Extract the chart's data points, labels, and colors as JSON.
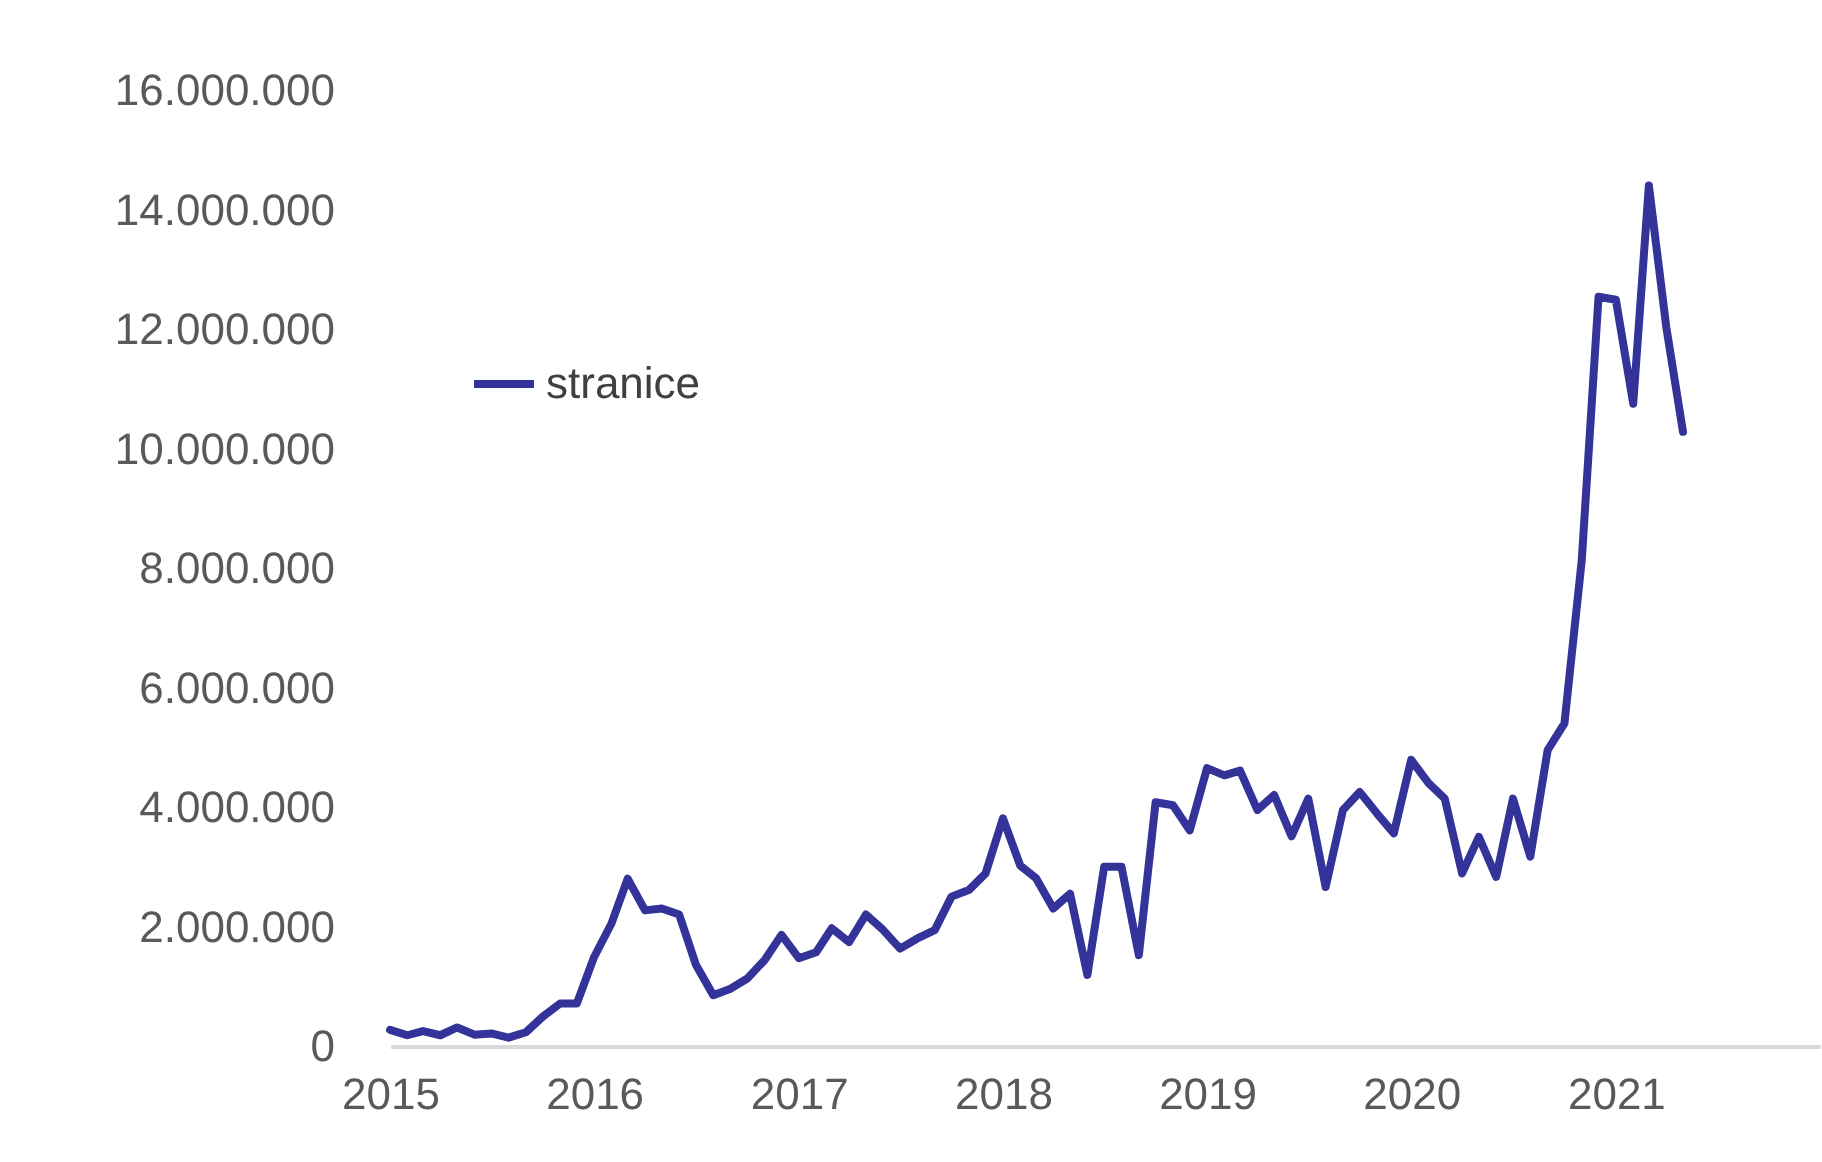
{
  "chart_data": {
    "type": "line",
    "legend": "top left",
    "marker": "none",
    "line_style": "solid",
    "grid": false,
    "x": [
      "2015-01",
      "2015-02",
      "2015-03",
      "2015-04",
      "2015-05",
      "2015-06",
      "2015-07",
      "2015-08",
      "2015-09",
      "2015-10",
      "2015-11",
      "2015-12",
      "2016-01",
      "2016-02",
      "2016-03",
      "2016-04",
      "2016-05",
      "2016-06",
      "2016-07",
      "2016-08",
      "2016-09",
      "2016-10",
      "2016-11",
      "2016-12",
      "2017-01",
      "2017-02",
      "2017-03",
      "2017-04",
      "2017-05",
      "2017-06",
      "2017-07",
      "2017-08",
      "2017-09",
      "2017-10",
      "2017-11",
      "2017-12",
      "2018-01",
      "2018-02",
      "2018-03",
      "2018-04",
      "2018-05",
      "2018-06",
      "2018-07",
      "2018-08",
      "2018-09",
      "2018-10",
      "2018-11",
      "2018-12",
      "2019-01",
      "2019-02",
      "2019-03",
      "2019-04",
      "2019-05",
      "2019-06",
      "2019-07",
      "2019-08",
      "2019-09",
      "2019-10",
      "2019-11",
      "2019-12",
      "2020-01",
      "2020-02",
      "2020-03",
      "2020-04",
      "2020-05",
      "2020-06",
      "2020-07",
      "2020-08",
      "2020-09",
      "2020-10",
      "2020-11",
      "2020-12",
      "2021-01",
      "2021-02",
      "2021-03",
      "2021-04",
      "2021-05"
    ],
    "series": [
      {
        "name": "stranice",
        "color": "#333399",
        "values": [
          270000,
          180000,
          250000,
          180000,
          310000,
          190000,
          210000,
          140000,
          230000,
          490000,
          710000,
          710000,
          1490000,
          2050000,
          2800000,
          2270000,
          2300000,
          2200000,
          1360000,
          850000,
          960000,
          1130000,
          1440000,
          1860000,
          1470000,
          1570000,
          1970000,
          1740000,
          2200000,
          1940000,
          1630000,
          1800000,
          1940000,
          2500000,
          2610000,
          2890000,
          3810000,
          3020000,
          2810000,
          2300000,
          2550000,
          1190000,
          3000000,
          3000000,
          1520000,
          4080000,
          4030000,
          3610000,
          4650000,
          4530000,
          4610000,
          3950000,
          4200000,
          3510000,
          4140000,
          2660000,
          3950000,
          4250000,
          3890000,
          3560000,
          4790000,
          4400000,
          4140000,
          2890000,
          3500000,
          2830000,
          4140000,
          3170000,
          4950000,
          5400000,
          8130000,
          12540000,
          12490000,
          10750000,
          14400000,
          12040000,
          10280000
        ]
      }
    ],
    "xlim": [
      "2015-01",
      "2022-01"
    ],
    "xticks": [
      "2015",
      "2016",
      "2017",
      "2018",
      "2019",
      "2020",
      "2021"
    ],
    "ylim": [
      0,
      16000000
    ],
    "yticks": [
      0,
      {
        "value": 2000000,
        "label": "2.000.000"
      },
      {
        "value": 4000000,
        "label": "4.000.000"
      },
      {
        "value": 6000000,
        "label": "6.000.000"
      },
      {
        "value": 8000000,
        "label": "8.000.000"
      },
      {
        "value": 10000000,
        "label": "10.000.000"
      },
      {
        "value": 12000000,
        "label": "12.000.000"
      },
      {
        "value": 14000000,
        "label": "14.000.000"
      },
      {
        "value": 16000000,
        "label": "16.000.000"
      }
    ]
  }
}
